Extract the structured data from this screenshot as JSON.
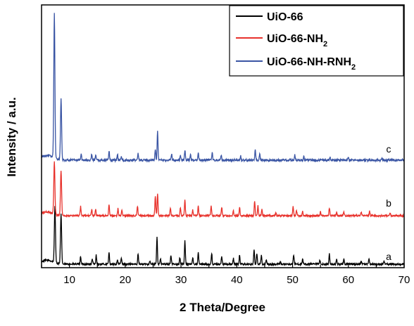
{
  "chart_data": {
    "type": "line",
    "xlabel": "2 Theta/Degree",
    "ylabel": "Intensity / a.u.",
    "xlim": [
      5,
      70
    ],
    "x_ticks": [
      10,
      20,
      30,
      40,
      50,
      60,
      70
    ],
    "x_tick_labels": [
      "10",
      "20",
      "30",
      "40",
      "50",
      "60",
      "70"
    ],
    "y_ticks_visible": false,
    "legend_position": "top-right",
    "series": [
      {
        "name": "UiO-66",
        "color": "#000000",
        "curve_label": "a",
        "baseline": 0,
        "peaks": [
          [
            7.4,
            100
          ],
          [
            8.5,
            88
          ],
          [
            12.0,
            14
          ],
          [
            14.1,
            9
          ],
          [
            14.8,
            16
          ],
          [
            17.1,
            21
          ],
          [
            18.6,
            8
          ],
          [
            19.3,
            11
          ],
          [
            22.3,
            19
          ],
          [
            24.4,
            6
          ],
          [
            25.7,
            48
          ],
          [
            26.3,
            10
          ],
          [
            28.2,
            16
          ],
          [
            29.8,
            12
          ],
          [
            30.7,
            42
          ],
          [
            32.1,
            12
          ],
          [
            33.1,
            20
          ],
          [
            35.5,
            19
          ],
          [
            37.3,
            14
          ],
          [
            39.4,
            11
          ],
          [
            40.5,
            16
          ],
          [
            43.1,
            26
          ],
          [
            43.6,
            20
          ],
          [
            44.4,
            15
          ],
          [
            45.3,
            8
          ],
          [
            47.8,
            5
          ],
          [
            50.2,
            17
          ],
          [
            51.8,
            9
          ],
          [
            54.9,
            7
          ],
          [
            56.6,
            18
          ],
          [
            57.9,
            8
          ],
          [
            59.2,
            9
          ],
          [
            62.3,
            6
          ],
          [
            63.7,
            10
          ],
          [
            66.4,
            5
          ]
        ]
      },
      {
        "name": "UiO-66-NH2",
        "color": "#e8322c",
        "curve_label": "b",
        "baseline": 0,
        "peaks": [
          [
            7.3,
            95
          ],
          [
            8.5,
            82
          ],
          [
            12.0,
            17
          ],
          [
            14.0,
            11
          ],
          [
            14.7,
            12
          ],
          [
            17.1,
            21
          ],
          [
            18.7,
            14
          ],
          [
            19.4,
            10
          ],
          [
            22.2,
            18
          ],
          [
            25.4,
            36
          ],
          [
            25.8,
            40
          ],
          [
            28.1,
            14
          ],
          [
            29.9,
            15
          ],
          [
            30.7,
            28
          ],
          [
            32.1,
            10
          ],
          [
            33.1,
            17
          ],
          [
            35.4,
            19
          ],
          [
            37.3,
            16
          ],
          [
            39.4,
            9
          ],
          [
            40.5,
            16
          ],
          [
            43.2,
            27
          ],
          [
            43.8,
            18
          ],
          [
            44.5,
            13
          ],
          [
            47.0,
            5
          ],
          [
            50.1,
            17
          ],
          [
            50.7,
            10
          ],
          [
            51.8,
            8
          ],
          [
            55.0,
            8
          ],
          [
            56.6,
            14
          ],
          [
            57.9,
            6
          ],
          [
            59.2,
            7
          ],
          [
            62.3,
            6
          ],
          [
            63.8,
            8
          ],
          [
            67.5,
            5
          ]
        ]
      },
      {
        "name": "UiO-66-NH-RNH2",
        "color": "#3a55a4",
        "curve_label": "c",
        "baseline": 0,
        "peaks": [
          [
            7.3,
            205
          ],
          [
            8.5,
            87
          ],
          [
            12.1,
            10
          ],
          [
            14.0,
            9
          ],
          [
            14.7,
            8
          ],
          [
            17.1,
            13
          ],
          [
            18.6,
            9
          ],
          [
            19.3,
            6
          ],
          [
            22.3,
            10
          ],
          [
            25.4,
            15
          ],
          [
            25.8,
            41
          ],
          [
            28.3,
            9
          ],
          [
            29.9,
            7
          ],
          [
            30.7,
            14
          ],
          [
            31.7,
            9
          ],
          [
            33.1,
            11
          ],
          [
            35.6,
            10
          ],
          [
            37.2,
            7
          ],
          [
            40.7,
            6
          ],
          [
            43.3,
            15
          ],
          [
            44.1,
            9
          ],
          [
            50.4,
            8
          ],
          [
            52.0,
            5
          ],
          [
            56.7,
            5
          ],
          [
            60.0,
            4
          ],
          [
            66.0,
            3
          ]
        ]
      }
    ]
  },
  "legend": {
    "items": [
      {
        "main": "UiO-66",
        "sub": "",
        "color": "#000000"
      },
      {
        "main": "UiO-66-NH",
        "sub": "2",
        "color": "#e8322c"
      },
      {
        "main": "UiO-66-NH-RNH",
        "sub": "2",
        "color": "#3a55a4"
      }
    ]
  }
}
